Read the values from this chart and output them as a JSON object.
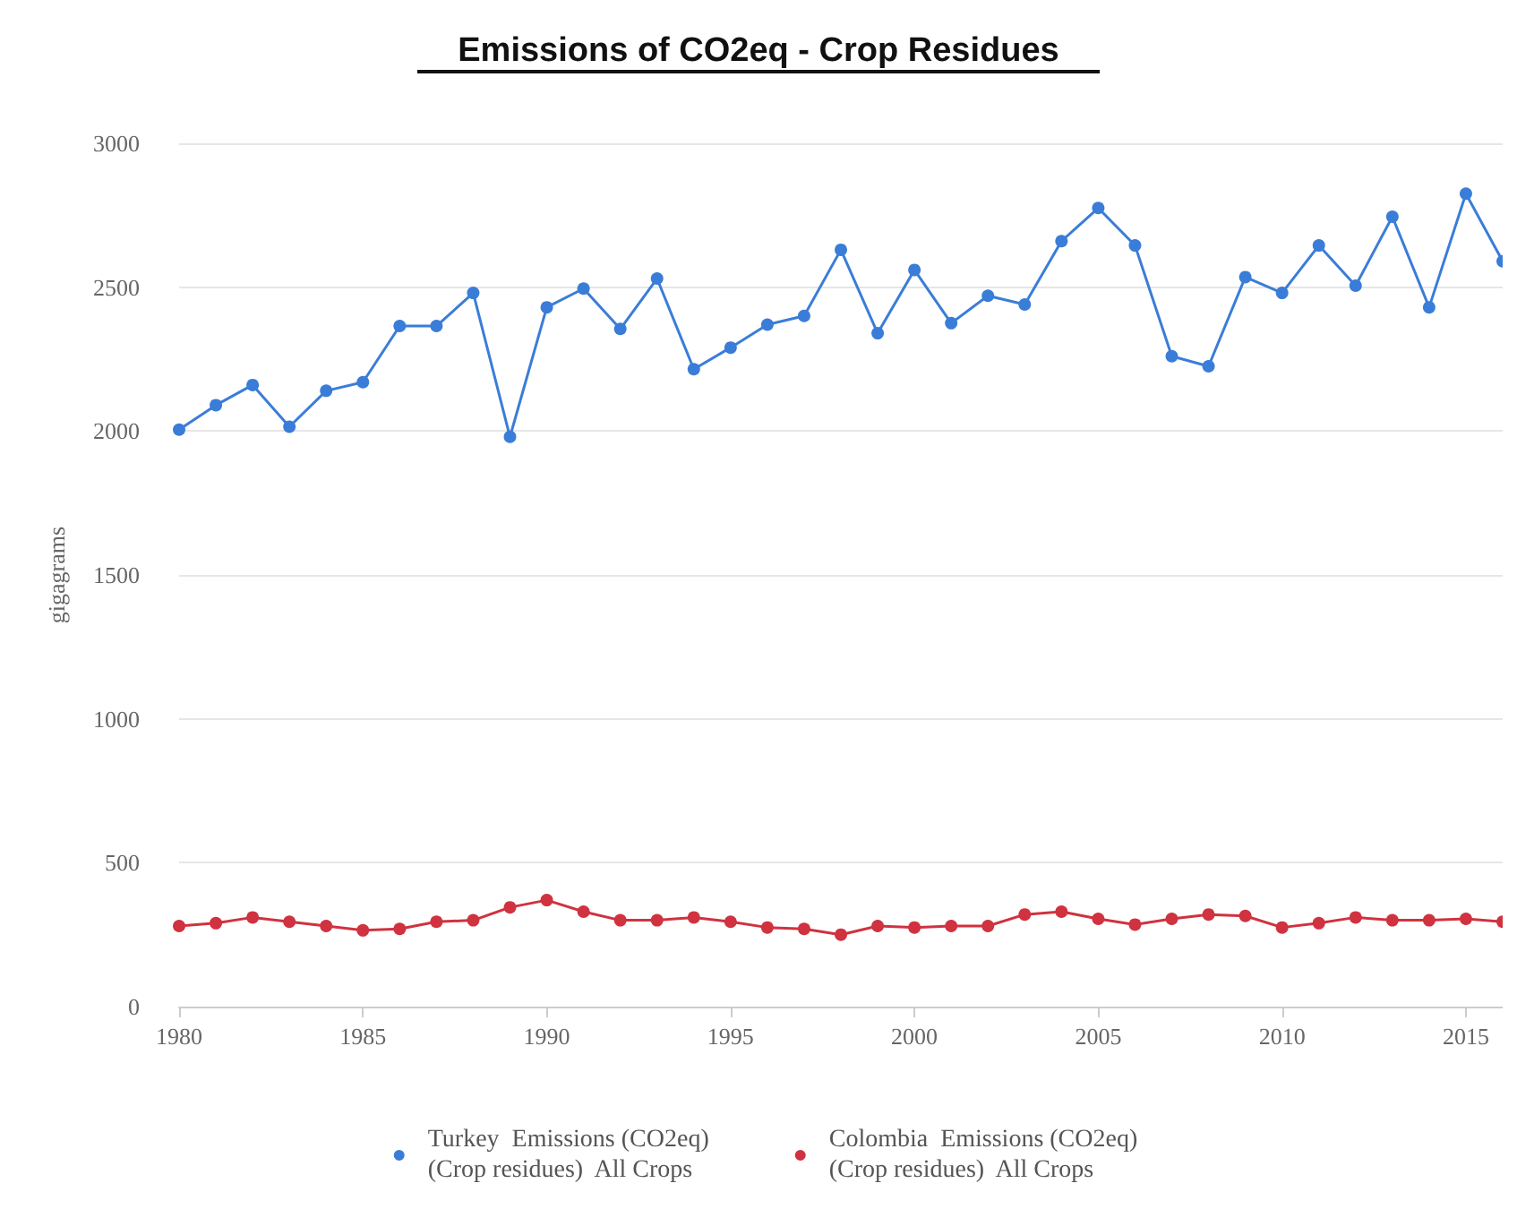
{
  "chart_data": {
    "type": "line",
    "title": "Emissions of CO2eq - Crop Residues",
    "ylabel": "gigagrams",
    "x": [
      1980,
      1981,
      1982,
      1983,
      1984,
      1985,
      1986,
      1987,
      1988,
      1989,
      1990,
      1991,
      1992,
      1993,
      1994,
      1995,
      1996,
      1997,
      1998,
      1999,
      2000,
      2001,
      2002,
      2003,
      2004,
      2005,
      2006,
      2007,
      2008,
      2009,
      2010,
      2011,
      2012,
      2013,
      2014,
      2015,
      2016
    ],
    "series": [
      {
        "name": "Turkey  Emissions (CO2eq)\n(Crop residues)  All Crops",
        "color": "#3a7dd8",
        "values": [
          2005,
          2090,
          2160,
          2015,
          2140,
          2170,
          2365,
          2365,
          2480,
          1980,
          2430,
          2495,
          2355,
          2530,
          2215,
          2290,
          2370,
          2400,
          2630,
          2340,
          2560,
          2375,
          2470,
          2440,
          2660,
          2775,
          2645,
          2260,
          2225,
          2535,
          2480,
          2645,
          2505,
          2745,
          2430,
          2825,
          2590
        ]
      },
      {
        "name": "Colombia  Emissions (CO2eq)\n(Crop residues)  All Crops",
        "color": "#d0323f",
        "values": [
          280,
          290,
          310,
          295,
          280,
          265,
          270,
          295,
          300,
          345,
          370,
          330,
          300,
          300,
          310,
          295,
          275,
          270,
          250,
          280,
          275,
          280,
          280,
          320,
          330,
          305,
          285,
          305,
          320,
          315,
          275,
          290,
          310,
          300,
          300,
          305,
          295
        ]
      }
    ],
    "xlim": [
      1980,
      2016
    ],
    "xticks": [
      1980,
      1985,
      1990,
      1995,
      2000,
      2005,
      2010,
      2015
    ],
    "ylim": [
      0,
      3000
    ],
    "yticks": [
      0,
      500,
      1000,
      1500,
      2000,
      2500,
      3000
    ],
    "grid": "y",
    "legend": "bottom",
    "marker": "circle",
    "line_style": "solid"
  }
}
